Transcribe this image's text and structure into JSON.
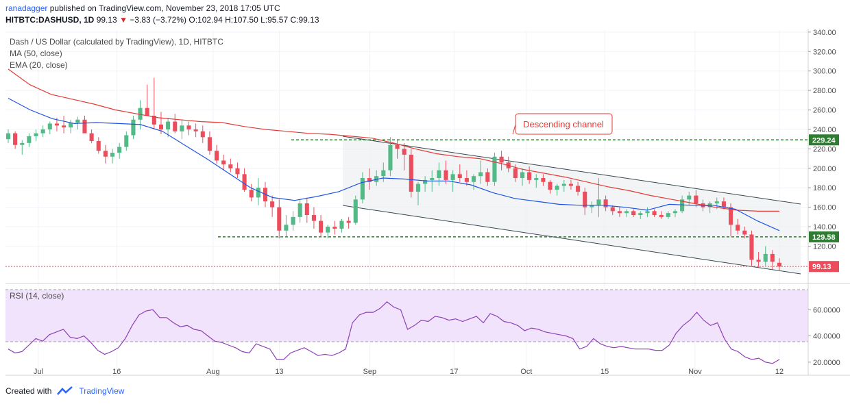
{
  "header": {
    "author": "ranadagger",
    "published_text": "published on TradingView.com, November 23, 2018 17:05 UTC"
  },
  "ticker": {
    "symbol": "HITBTC:DASHUSD, 1D",
    "last": "99.13",
    "change": "−3.83 (−3.72%)",
    "ohlc": "O:102.94 H:107.50 L:95.57 C:99.13"
  },
  "legend": {
    "title": "Dash / US Dollar (calculated by TradingView), 1D, HITBTC",
    "ma": "MA (50, close)",
    "ema": "EMA (20, close)",
    "rsi": "RSI (14, close)"
  },
  "annotation": "Descending channel",
  "price_labels": {
    "resistance": "229.24",
    "support": "129.58",
    "last": "99.13"
  },
  "footer": {
    "created_with": "Created with",
    "brand": "TradingView"
  },
  "colors": {
    "up": "#53b987",
    "down": "#eb4d5c",
    "ma50": "#e53935",
    "ema20": "#1e53e5",
    "rsi": "#8e3fb5",
    "level": "#2e7d32",
    "channel": "#37474f"
  },
  "chart_data": {
    "type": "candlestick",
    "y_axis_ticks": [
      "340.00",
      "320.00",
      "300.00",
      "280.00",
      "260.00",
      "240.00",
      "220.00",
      "200.00",
      "180.00",
      "160.00",
      "140.00",
      "120.00"
    ],
    "ylim": [
      88,
      342
    ],
    "x_axis_ticks": [
      "Jul",
      "16",
      "Aug",
      "13",
      "Sep",
      "17",
      "Oct",
      "15",
      "Nov",
      "12"
    ],
    "rsi_ticks": [
      "60.0000",
      "40.0000",
      "20.0000"
    ],
    "rsi_levels": [
      70,
      30
    ],
    "horizontal_levels": [
      229.24,
      129.58
    ],
    "last_price": 99.13,
    "candles": [
      [
        230,
        240,
        226,
        236
      ],
      [
        236,
        238,
        220,
        224
      ],
      [
        224,
        229,
        214,
        226
      ],
      [
        226,
        236,
        222,
        233
      ],
      [
        233,
        240,
        228,
        236
      ],
      [
        236,
        244,
        232,
        240
      ],
      [
        240,
        248,
        235,
        246
      ],
      [
        246,
        252,
        238,
        244
      ],
      [
        244,
        254,
        236,
        242
      ],
      [
        242,
        250,
        236,
        247
      ],
      [
        247,
        253,
        240,
        250
      ],
      [
        250,
        254,
        238,
        236
      ],
      [
        236,
        240,
        226,
        228
      ],
      [
        228,
        232,
        215,
        218
      ],
      [
        218,
        224,
        205,
        212
      ],
      [
        212,
        220,
        205,
        216
      ],
      [
        216,
        226,
        210,
        222
      ],
      [
        222,
        238,
        218,
        234
      ],
      [
        234,
        254,
        230,
        250
      ],
      [
        250,
        270,
        240,
        262
      ],
      [
        262,
        286,
        255,
        254
      ],
      [
        254,
        293,
        240,
        245
      ],
      [
        245,
        258,
        235,
        240
      ],
      [
        240,
        252,
        232,
        248
      ],
      [
        248,
        256,
        236,
        238
      ],
      [
        238,
        250,
        230,
        244
      ],
      [
        244,
        248,
        234,
        240
      ],
      [
        240,
        246,
        232,
        238
      ],
      [
        238,
        244,
        226,
        232
      ],
      [
        232,
        238,
        214,
        218
      ],
      [
        218,
        224,
        205,
        208
      ],
      [
        208,
        214,
        198,
        204
      ],
      [
        204,
        210,
        196,
        200
      ],
      [
        200,
        206,
        190,
        194
      ],
      [
        194,
        200,
        176,
        178
      ],
      [
        178,
        184,
        166,
        170
      ],
      [
        170,
        190,
        162,
        180
      ],
      [
        180,
        186,
        160,
        166
      ],
      [
        166,
        172,
        150,
        160
      ],
      [
        160,
        168,
        128,
        136
      ],
      [
        136,
        152,
        130,
        142
      ],
      [
        142,
        156,
        136,
        150
      ],
      [
        150,
        168,
        144,
        164
      ],
      [
        164,
        170,
        144,
        152
      ],
      [
        152,
        160,
        138,
        146
      ],
      [
        146,
        152,
        130,
        134
      ],
      [
        134,
        142,
        128,
        140
      ],
      [
        140,
        146,
        132,
        138
      ],
      [
        138,
        148,
        134,
        146
      ],
      [
        146,
        150,
        138,
        144
      ],
      [
        144,
        172,
        142,
        168
      ],
      [
        168,
        196,
        164,
        190
      ],
      [
        190,
        200,
        178,
        186
      ],
      [
        186,
        198,
        182,
        192
      ],
      [
        192,
        206,
        186,
        198
      ],
      [
        198,
        232,
        192,
        224
      ],
      [
        224,
        230,
        210,
        220
      ],
      [
        220,
        226,
        198,
        214
      ],
      [
        214,
        220,
        170,
        176
      ],
      [
        176,
        186,
        162,
        184
      ],
      [
        184,
        192,
        176,
        188
      ],
      [
        188,
        198,
        176,
        190
      ],
      [
        190,
        206,
        182,
        198
      ],
      [
        198,
        208,
        184,
        188
      ],
      [
        188,
        198,
        176,
        194
      ],
      [
        194,
        204,
        186,
        190
      ],
      [
        190,
        198,
        182,
        186
      ],
      [
        186,
        194,
        178,
        192
      ],
      [
        192,
        208,
        184,
        196
      ],
      [
        196,
        200,
        182,
        186
      ],
      [
        186,
        216,
        182,
        212
      ],
      [
        212,
        218,
        198,
        206
      ],
      [
        206,
        212,
        196,
        200
      ],
      [
        200,
        204,
        186,
        190
      ],
      [
        190,
        200,
        182,
        196
      ],
      [
        196,
        202,
        184,
        188
      ],
      [
        188,
        194,
        180,
        190
      ],
      [
        190,
        194,
        182,
        186
      ],
      [
        186,
        188,
        174,
        178
      ],
      [
        178,
        184,
        172,
        182
      ],
      [
        182,
        188,
        176,
        184
      ],
      [
        184,
        188,
        178,
        182
      ],
      [
        182,
        186,
        172,
        176
      ],
      [
        176,
        180,
        152,
        160
      ],
      [
        160,
        166,
        154,
        162
      ],
      [
        162,
        190,
        150,
        168
      ],
      [
        168,
        172,
        156,
        160
      ],
      [
        160,
        162,
        152,
        156
      ],
      [
        156,
        160,
        150,
        154
      ],
      [
        154,
        158,
        150,
        156
      ],
      [
        156,
        158,
        150,
        152
      ],
      [
        152,
        156,
        148,
        154
      ],
      [
        154,
        160,
        150,
        156
      ],
      [
        156,
        158,
        150,
        152
      ],
      [
        152,
        156,
        148,
        150
      ],
      [
        150,
        156,
        148,
        154
      ],
      [
        154,
        158,
        150,
        156
      ],
      [
        156,
        172,
        154,
        168
      ],
      [
        168,
        176,
        162,
        172
      ],
      [
        172,
        178,
        160,
        164
      ],
      [
        164,
        168,
        156,
        160
      ],
      [
        160,
        166,
        154,
        164
      ],
      [
        164,
        170,
        158,
        166
      ],
      [
        166,
        170,
        158,
        160
      ],
      [
        160,
        164,
        130,
        142
      ],
      [
        142,
        148,
        132,
        136
      ],
      [
        136,
        140,
        128,
        132
      ],
      [
        132,
        136,
        100,
        106
      ],
      [
        106,
        114,
        98,
        104
      ],
      [
        104,
        120,
        100,
        112
      ],
      [
        112,
        116,
        96,
        104
      ],
      [
        102.94,
        107.5,
        95.57,
        99.13
      ]
    ],
    "ma50": [
      302,
      286,
      276,
      271,
      266,
      260,
      256,
      252,
      250,
      248,
      247,
      243,
      240,
      238,
      236,
      235,
      233,
      231,
      226,
      220,
      215,
      212,
      210,
      205,
      199,
      195,
      191,
      186,
      181,
      177,
      172,
      168,
      164,
      160,
      157,
      156,
      156
    ],
    "ema20": [
      272,
      260,
      251,
      246,
      247,
      246,
      245,
      238,
      224,
      210,
      195,
      180,
      170,
      167,
      171,
      176,
      185,
      190,
      189,
      187,
      187,
      183,
      175,
      169,
      166,
      163,
      162,
      162,
      160,
      157,
      163,
      162,
      162,
      158,
      146,
      136
    ],
    "rsi": [
      30,
      27,
      28,
      33,
      38,
      36,
      41,
      43,
      45,
      39,
      38,
      40,
      35,
      29,
      26,
      28,
      31,
      38,
      48,
      56,
      59,
      60,
      54,
      54,
      50,
      47,
      48,
      45,
      44,
      40,
      36,
      35,
      33,
      31,
      28,
      27,
      34,
      32,
      30,
      22,
      22,
      27,
      29,
      31,
      28,
      25,
      26,
      25,
      27,
      30,
      50,
      56,
      58,
      58,
      61,
      66,
      62,
      60,
      45,
      48,
      52,
      51,
      55,
      54,
      52,
      53,
      51,
      53,
      55,
      50,
      57,
      55,
      51,
      50,
      48,
      44,
      46,
      45,
      43,
      42,
      41,
      40,
      38,
      30,
      32,
      38,
      34,
      32,
      31,
      32,
      31,
      30,
      30,
      30,
      29,
      29,
      33,
      42,
      48,
      52,
      58,
      52,
      48,
      50,
      38,
      30,
      28,
      24,
      22,
      23,
      20,
      19,
      22
    ]
  }
}
